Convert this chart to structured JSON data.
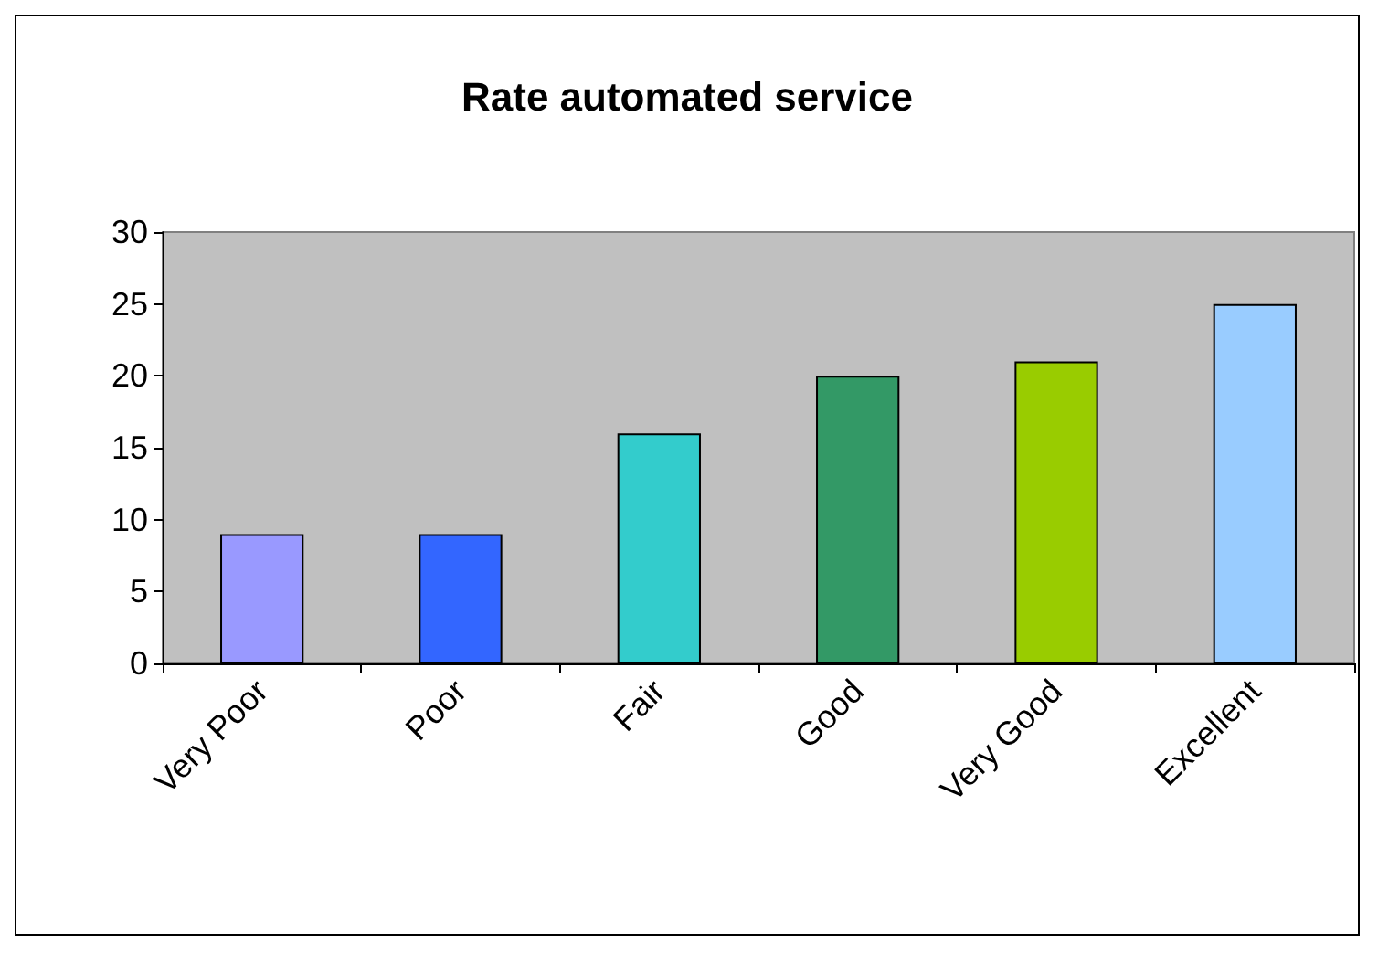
{
  "chart_data": {
    "type": "bar",
    "title": "Rate automated service",
    "categories": [
      "Very Poor",
      "Poor",
      "Fair",
      "Good",
      "Very Good",
      "Excellent"
    ],
    "values": [
      9,
      9,
      16,
      20,
      21,
      25
    ],
    "colors": [
      "#9999ff",
      "#3366ff",
      "#33cccc",
      "#339966",
      "#99cc00",
      "#99ccff"
    ],
    "ylim": [
      0,
      30
    ],
    "yticks": [
      0,
      5,
      10,
      15,
      20,
      25,
      30
    ]
  }
}
